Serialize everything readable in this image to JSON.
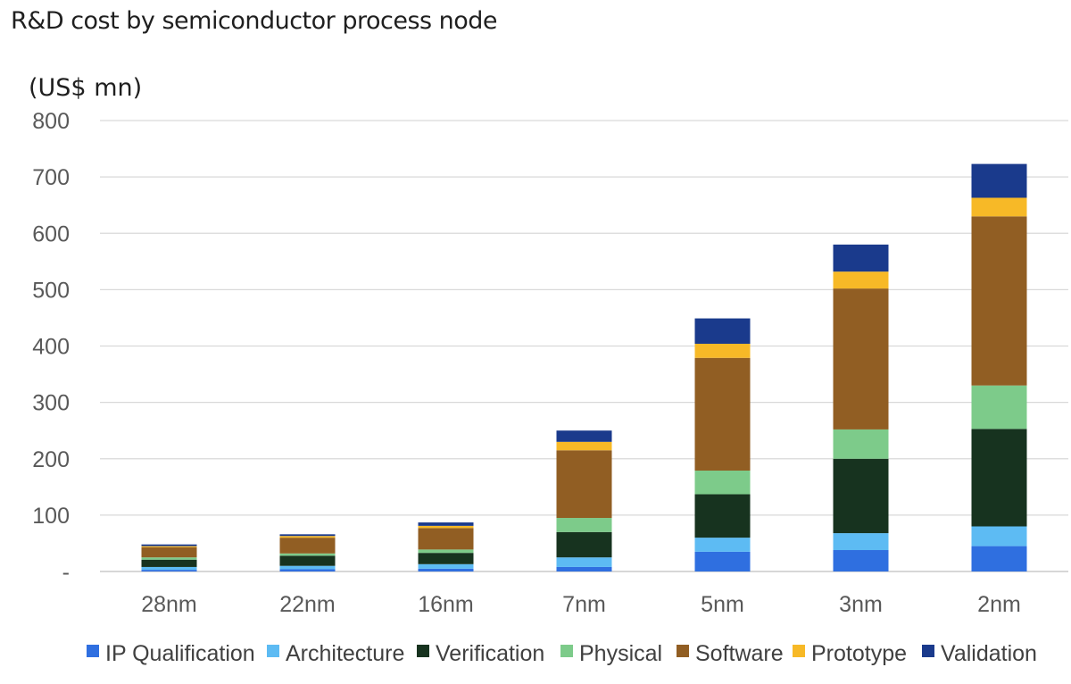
{
  "chart_data": {
    "type": "bar",
    "stacked": true,
    "title": "R&D cost by semiconductor process node",
    "ylabel": "(US$ mn)",
    "xlabel": "",
    "ylim": [
      0,
      800
    ],
    "yticks": [
      0,
      100,
      200,
      300,
      400,
      500,
      600,
      700,
      800
    ],
    "ytick_labels": [
      "-",
      "100",
      "200",
      "300",
      "400",
      "500",
      "600",
      "700",
      "800"
    ],
    "grid": true,
    "legend_position": "bottom",
    "categories": [
      "28nm",
      "22nm",
      "16nm",
      "7nm",
      "5nm",
      "3nm",
      "2nm"
    ],
    "series": [
      {
        "name": "IP Qualification",
        "color": "#2F6FE0",
        "values": [
          3,
          4,
          5,
          8,
          35,
          38,
          45
        ]
      },
      {
        "name": "Architecture",
        "color": "#5DBBF3",
        "values": [
          5,
          6,
          8,
          17,
          25,
          30,
          35
        ]
      },
      {
        "name": "Verification",
        "color": "#17331F",
        "values": [
          13,
          18,
          20,
          45,
          77,
          132,
          173
        ]
      },
      {
        "name": "Physical",
        "color": "#7DCB8A",
        "values": [
          4,
          4,
          6,
          25,
          42,
          52,
          77
        ]
      },
      {
        "name": "Software",
        "color": "#915E23",
        "values": [
          18,
          28,
          38,
          120,
          200,
          250,
          300
        ]
      },
      {
        "name": "Prototype",
        "color": "#F7B927",
        "values": [
          2,
          3,
          4,
          15,
          25,
          30,
          33
        ]
      },
      {
        "name": "Validation",
        "color": "#1A3A8C",
        "values": [
          3,
          3,
          6,
          20,
          45,
          48,
          60
        ]
      }
    ]
  }
}
